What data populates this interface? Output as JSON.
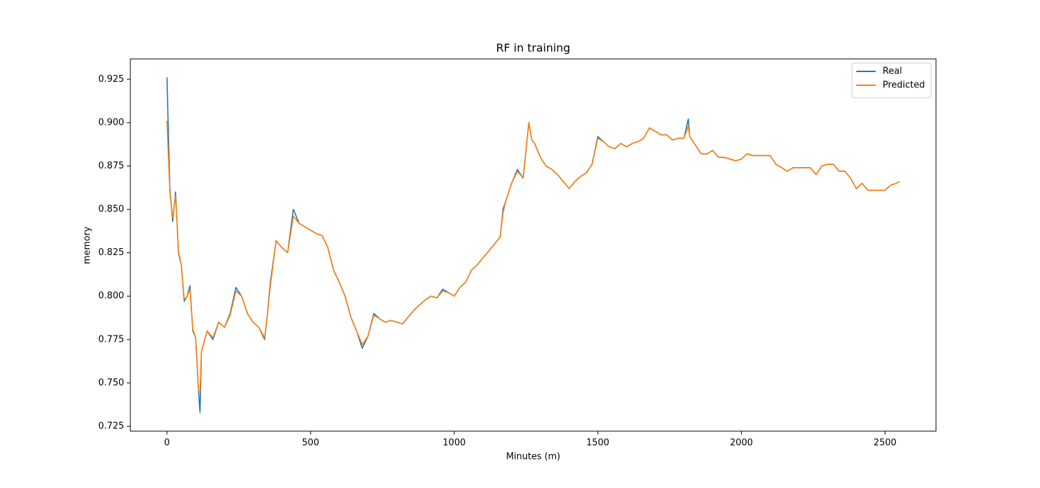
{
  "chart_data": {
    "type": "line",
    "title": "RF in training",
    "x_label": "Minutes (m)",
    "y_label": "memory",
    "x": [
      0,
      10,
      20,
      30,
      40,
      50,
      60,
      70,
      80,
      90,
      100,
      110,
      115,
      120,
      140,
      160,
      180,
      200,
      220,
      240,
      260,
      280,
      300,
      320,
      340,
      350,
      360,
      380,
      400,
      420,
      440,
      460,
      480,
      500,
      520,
      540,
      560,
      580,
      600,
      620,
      640,
      660,
      680,
      700,
      720,
      740,
      760,
      780,
      800,
      820,
      840,
      860,
      880,
      900,
      920,
      940,
      960,
      980,
      1000,
      1020,
      1040,
      1060,
      1080,
      1100,
      1120,
      1140,
      1160,
      1170,
      1180,
      1200,
      1220,
      1240,
      1260,
      1270,
      1280,
      1300,
      1320,
      1340,
      1360,
      1380,
      1400,
      1420,
      1440,
      1460,
      1480,
      1500,
      1520,
      1540,
      1560,
      1580,
      1600,
      1620,
      1640,
      1660,
      1680,
      1700,
      1720,
      1740,
      1760,
      1780,
      1800,
      1815,
      1820,
      1840,
      1860,
      1880,
      1900,
      1920,
      1940,
      1960,
      1980,
      2000,
      2020,
      2040,
      2060,
      2080,
      2100,
      2120,
      2140,
      2160,
      2180,
      2200,
      2220,
      2240,
      2260,
      2280,
      2300,
      2320,
      2340,
      2360,
      2380,
      2400,
      2420,
      2440,
      2460,
      2480,
      2500,
      2520,
      2540,
      2550
    ],
    "series": [
      {
        "name": "Real",
        "color": "#1f77b4",
        "values": [
          0.926,
          0.862,
          0.843,
          0.86,
          0.825,
          0.818,
          0.797,
          0.8,
          0.806,
          0.78,
          0.776,
          0.745,
          0.733,
          0.768,
          0.78,
          0.775,
          0.785,
          0.782,
          0.79,
          0.805,
          0.8,
          0.79,
          0.785,
          0.782,
          0.775,
          0.79,
          0.808,
          0.832,
          0.828,
          0.825,
          0.85,
          0.842,
          0.84,
          0.838,
          0.836,
          0.835,
          0.828,
          0.815,
          0.808,
          0.8,
          0.788,
          0.78,
          0.77,
          0.777,
          0.79,
          0.787,
          0.785,
          0.786,
          0.785,
          0.784,
          0.788,
          0.792,
          0.795,
          0.798,
          0.8,
          0.799,
          0.804,
          0.802,
          0.8,
          0.805,
          0.808,
          0.815,
          0.818,
          0.822,
          0.826,
          0.83,
          0.834,
          0.85,
          0.855,
          0.865,
          0.873,
          0.868,
          0.9,
          0.89,
          0.888,
          0.88,
          0.875,
          0.873,
          0.87,
          0.866,
          0.862,
          0.866,
          0.869,
          0.871,
          0.876,
          0.892,
          0.889,
          0.886,
          0.885,
          0.888,
          0.886,
          0.888,
          0.889,
          0.891,
          0.897,
          0.895,
          0.893,
          0.893,
          0.89,
          0.891,
          0.891,
          0.902,
          0.892,
          0.887,
          0.882,
          0.882,
          0.884,
          0.88,
          0.88,
          0.879,
          0.878,
          0.879,
          0.882,
          0.881,
          0.881,
          0.881,
          0.881,
          0.876,
          0.874,
          0.872,
          0.874,
          0.874,
          0.874,
          0.874,
          0.87,
          0.875,
          0.876,
          0.876,
          0.872,
          0.872,
          0.868,
          0.862,
          0.865,
          0.861,
          0.861,
          0.861,
          0.861,
          0.864,
          0.865,
          0.866
        ]
      },
      {
        "name": "Predicted",
        "color": "#ff7f0e",
        "values": [
          0.901,
          0.86,
          0.845,
          0.858,
          0.826,
          0.818,
          0.798,
          0.8,
          0.804,
          0.781,
          0.776,
          0.745,
          0.745,
          0.768,
          0.78,
          0.776,
          0.785,
          0.782,
          0.789,
          0.803,
          0.8,
          0.79,
          0.785,
          0.782,
          0.776,
          0.79,
          0.806,
          0.832,
          0.828,
          0.825,
          0.846,
          0.842,
          0.84,
          0.838,
          0.836,
          0.835,
          0.828,
          0.815,
          0.808,
          0.8,
          0.788,
          0.78,
          0.772,
          0.777,
          0.789,
          0.787,
          0.785,
          0.786,
          0.785,
          0.784,
          0.788,
          0.792,
          0.795,
          0.798,
          0.8,
          0.799,
          0.803,
          0.802,
          0.8,
          0.805,
          0.808,
          0.815,
          0.818,
          0.822,
          0.826,
          0.83,
          0.834,
          0.848,
          0.855,
          0.865,
          0.872,
          0.868,
          0.9,
          0.89,
          0.888,
          0.88,
          0.875,
          0.873,
          0.87,
          0.866,
          0.862,
          0.866,
          0.869,
          0.871,
          0.876,
          0.891,
          0.889,
          0.886,
          0.885,
          0.888,
          0.886,
          0.888,
          0.889,
          0.891,
          0.897,
          0.895,
          0.893,
          0.893,
          0.89,
          0.891,
          0.891,
          0.898,
          0.892,
          0.887,
          0.882,
          0.882,
          0.884,
          0.88,
          0.88,
          0.879,
          0.878,
          0.879,
          0.882,
          0.881,
          0.881,
          0.881,
          0.881,
          0.876,
          0.874,
          0.872,
          0.874,
          0.874,
          0.874,
          0.874,
          0.87,
          0.875,
          0.876,
          0.876,
          0.872,
          0.872,
          0.868,
          0.862,
          0.865,
          0.861,
          0.861,
          0.861,
          0.861,
          0.864,
          0.865,
          0.866
        ]
      }
    ],
    "xlim": [
      -127.5,
      2677.5
    ],
    "xticks": [
      0,
      500,
      1000,
      1500,
      2000,
      2500
    ],
    "ylim": [
      0.7222,
      0.9367
    ],
    "yticks": [
      0.725,
      {
        "value": 0.75,
        "label": "0.750"
      },
      0.775,
      {
        "value": 0.8,
        "label": "0.800"
      },
      0.825,
      {
        "value": 0.85,
        "label": "0.850"
      },
      0.875,
      {
        "value": 0.9,
        "label": "0.900"
      },
      0.925
    ],
    "legend": "upper right",
    "grid": false
  }
}
